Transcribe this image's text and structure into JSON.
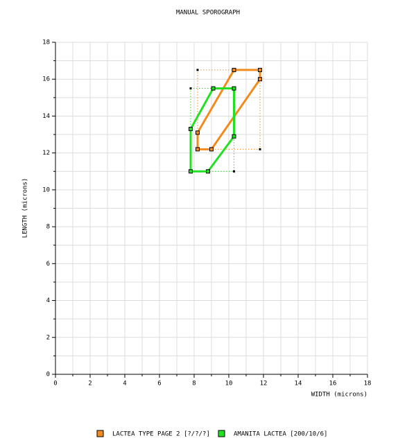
{
  "chart_data": {
    "type": "polygon",
    "title": "MANUAL SPOROGRAPH",
    "x_label": "WIDTH (microns)",
    "y_label": "LENGTH (microns)",
    "xlim": [
      0,
      18
    ],
    "ylim": [
      0,
      18
    ],
    "xticks": [
      0,
      2,
      4,
      6,
      8,
      10,
      12,
      14,
      16,
      18
    ],
    "yticks": [
      0,
      2,
      4,
      6,
      8,
      10,
      12,
      14,
      16,
      18
    ],
    "xminorticks": [
      1,
      3,
      5,
      7,
      9,
      11,
      13,
      15,
      17
    ],
    "yminorticks": [
      1,
      3,
      5,
      7,
      9,
      11,
      13,
      15,
      17
    ],
    "grid": true,
    "legend": "bottom",
    "series": [
      {
        "name": "LACTEA TYPE PAGE 2 [?/?/?]",
        "color": "#f28a1e",
        "x": [
          8.2,
          10.3,
          11.8,
          11.8,
          9.0,
          8.2
        ],
        "y": [
          13.1,
          16.5,
          16.5,
          16.0,
          12.2,
          12.2
        ]
      },
      {
        "name": "AMANITA LACTEA [200/10/6]",
        "color": "#22e022",
        "x": [
          7.8,
          9.1,
          10.3,
          10.3,
          8.8,
          7.8
        ],
        "y": [
          13.3,
          15.5,
          15.5,
          12.9,
          11.0,
          11.0
        ]
      }
    ]
  }
}
